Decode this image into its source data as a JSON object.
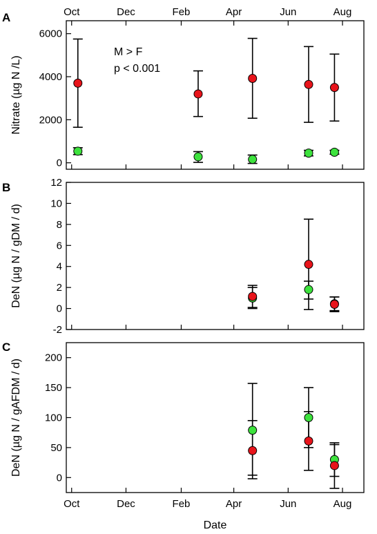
{
  "chart_data": [
    {
      "type": "scatter",
      "panel": "A",
      "ylabel": "Nitrate (µg N /L)",
      "ylim": [
        -300,
        6600
      ],
      "yticks": [
        0,
        2000,
        4000,
        6000
      ],
      "xlim": [
        "2012-09-25",
        "2013-08-25"
      ],
      "xticks": [
        {
          "date": "2012-10-01",
          "label": "Oct"
        },
        {
          "date": "2012-12-01",
          "label": "Dec"
        },
        {
          "date": "2013-02-01",
          "label": "Feb"
        },
        {
          "date": "2013-04-01",
          "label": "Apr"
        },
        {
          "date": "2013-06-01",
          "label": "Jun"
        },
        {
          "date": "2013-08-01",
          "label": "Aug"
        }
      ],
      "xaxis_position": "top",
      "annotations": [
        "M > F",
        "p < 0.001"
      ],
      "grid": false,
      "series": [
        {
          "color": "#e8141b",
          "points": [
            {
              "x": "2012-10-08",
              "y": 3700,
              "ylo": 1650,
              "yhi": 5750
            },
            {
              "x": "2013-02-20",
              "y": 3200,
              "ylo": 2150,
              "yhi": 4270
            },
            {
              "x": "2013-04-22",
              "y": 3920,
              "ylo": 2070,
              "yhi": 5780
            },
            {
              "x": "2013-06-24",
              "y": 3640,
              "ylo": 1880,
              "yhi": 5400
            },
            {
              "x": "2013-07-23",
              "y": 3500,
              "ylo": 1940,
              "yhi": 5050
            }
          ]
        },
        {
          "color": "#3de23d",
          "points": [
            {
              "x": "2012-10-08",
              "y": 540,
              "ylo": 380,
              "yhi": 700
            },
            {
              "x": "2013-02-20",
              "y": 280,
              "ylo": 20,
              "yhi": 520
            },
            {
              "x": "2013-04-22",
              "y": 160,
              "ylo": -30,
              "yhi": 360
            },
            {
              "x": "2013-06-24",
              "y": 450,
              "ylo": 320,
              "yhi": 580
            },
            {
              "x": "2013-07-23",
              "y": 490,
              "ylo": 400,
              "yhi": 580
            }
          ]
        }
      ]
    },
    {
      "type": "scatter",
      "panel": "B",
      "ylabel": "DeN (µg N / gDM / d)",
      "ylim": [
        -2,
        12
      ],
      "yticks": [
        -2,
        0,
        2,
        4,
        6,
        8,
        10,
        12
      ],
      "xlim": [
        "2012-09-25",
        "2013-08-25"
      ],
      "grid": false,
      "series": [
        {
          "color": "#3de23d",
          "points": [
            {
              "x": "2013-04-22",
              "y": 1.0,
              "ylo": 0.0,
              "yhi": 2.0
            },
            {
              "x": "2013-06-24",
              "y": 1.8,
              "ylo": -0.1,
              "yhi": 2.6
            },
            {
              "x": "2013-07-23",
              "y": 0.45,
              "ylo": -0.2,
              "yhi": 1.1
            }
          ]
        },
        {
          "color": "#e8141b",
          "points": [
            {
              "x": "2013-04-22",
              "y": 1.15,
              "ylo": 0.1,
              "yhi": 2.2
            },
            {
              "x": "2013-06-24",
              "y": 4.2,
              "ylo": 0.9,
              "yhi": 8.5
            },
            {
              "x": "2013-07-23",
              "y": 0.4,
              "ylo": -0.3,
              "yhi": 1.1
            }
          ]
        }
      ]
    },
    {
      "type": "scatter",
      "panel": "C",
      "ylabel": "DeN (µg N / gAFDM / d)",
      "xlabel": "Date",
      "ylim": [
        -25,
        225
      ],
      "yticks": [
        0,
        50,
        100,
        150,
        200
      ],
      "xlim": [
        "2012-09-25",
        "2013-08-25"
      ],
      "xticks": [
        {
          "date": "2012-10-01",
          "label": "Oct"
        },
        {
          "date": "2012-12-01",
          "label": "Dec"
        },
        {
          "date": "2013-02-01",
          "label": "Feb"
        },
        {
          "date": "2013-04-01",
          "label": "Apr"
        },
        {
          "date": "2013-06-01",
          "label": "Jun"
        },
        {
          "date": "2013-08-01",
          "label": "Aug"
        }
      ],
      "xaxis_position": "bottom",
      "grid": false,
      "series": [
        {
          "color": "#3de23d",
          "points": [
            {
              "x": "2013-04-22",
              "y": 79,
              "ylo": 4,
              "yhi": 157
            },
            {
              "x": "2013-06-24",
              "y": 100,
              "ylo": 50,
              "yhi": 150
            },
            {
              "x": "2013-07-23",
              "y": 30,
              "ylo": 2,
              "yhi": 58
            }
          ]
        },
        {
          "color": "#e8141b",
          "points": [
            {
              "x": "2013-04-22",
              "y": 45,
              "ylo": -2,
              "yhi": 95
            },
            {
              "x": "2013-06-24",
              "y": 61,
              "ylo": 12,
              "yhi": 110
            },
            {
              "x": "2013-07-23",
              "y": 20,
              "ylo": -18,
              "yhi": 55
            }
          ]
        }
      ]
    }
  ]
}
